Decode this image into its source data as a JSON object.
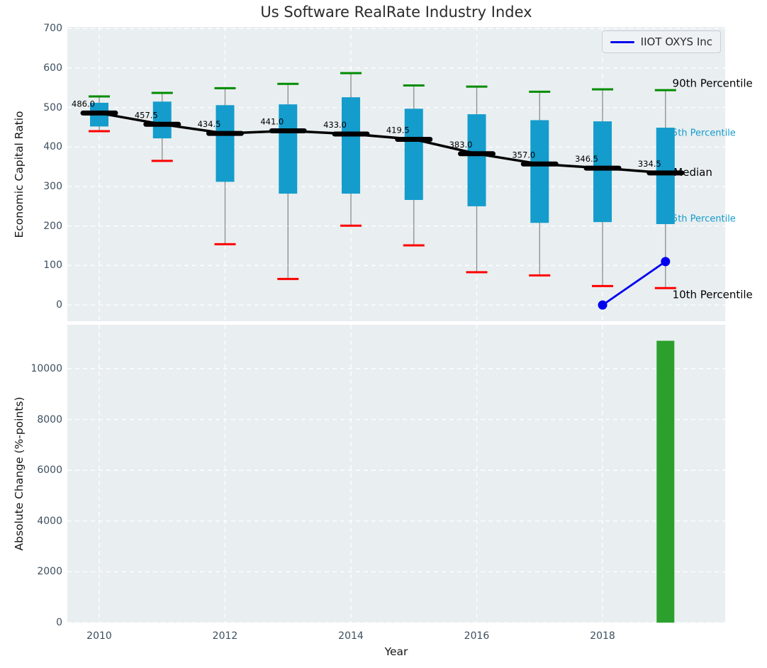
{
  "title": "Us Software RealRate Industry Index",
  "colors": {
    "box": "#149ccc",
    "whisker": "#8c8c8c",
    "cap_high": "#008c00",
    "cap_low": "#ff0000",
    "median": "#000000",
    "company_line": "#0000ee",
    "bar": "#2ca02c",
    "plot_background": "#e9eef0",
    "grid": "#ffffff",
    "tick_label": "#3d4f5f"
  },
  "chart_data": [
    {
      "type": "box",
      "ylabel": "Economic Capital Ratio",
      "ylim": [
        -41,
        704
      ],
      "yticks": [
        0,
        100,
        200,
        300,
        400,
        500,
        600,
        700
      ],
      "xlim": [
        2009.493,
        2019.949
      ],
      "xticks": [
        2010,
        2012,
        2014,
        2016,
        2018
      ],
      "grid": true,
      "years": [
        2010,
        2011,
        2012,
        2013,
        2014,
        2015,
        2016,
        2017,
        2018,
        2019
      ],
      "median": [
        486.0,
        457.5,
        434.5,
        441.0,
        433.0,
        419.5,
        383.0,
        357.0,
        346.5,
        334.5
      ],
      "median_labels": [
        "486.0",
        "457.5",
        "434.5",
        "441.0",
        "433.0",
        "419.5",
        "383.0",
        "357.0",
        "346.5",
        "334.5"
      ],
      "p75": [
        512,
        515,
        506,
        508,
        526,
        497,
        483,
        468,
        465,
        449
      ],
      "p25": [
        452,
        422,
        312,
        282,
        282,
        266,
        250,
        208,
        210,
        205
      ],
      "p90": [
        528,
        537,
        549,
        560,
        587,
        556,
        553,
        540,
        546,
        544
      ],
      "p10": [
        440,
        365,
        154,
        66,
        201,
        151,
        83,
        75,
        48,
        43
      ],
      "company_series": {
        "name": "IIOT OXYS Inc",
        "years": [
          2018,
          2019
        ],
        "values": [
          0,
          110
        ]
      },
      "legend": {
        "label": "IIOT OXYS Inc"
      },
      "annotations": [
        {
          "text": "90th Percentile",
          "value": 562,
          "year": 2019.11,
          "color": "#000000",
          "size": 15,
          "layer": "front"
        },
        {
          "text": "75th Percentile",
          "value": 437,
          "year": 2019.01,
          "color": "#149ccc",
          "size": 13,
          "layer": "behind"
        },
        {
          "text": "Median",
          "value": 336,
          "year": 2019.13,
          "color": "#000000",
          "size": 15,
          "layer": "front"
        },
        {
          "text": "25th Percentile",
          "value": 219,
          "year": 2019.01,
          "color": "#149ccc",
          "size": 13,
          "layer": "behind"
        },
        {
          "text": "10th Percentile",
          "value": 27,
          "year": 2019.11,
          "color": "#000000",
          "size": 15,
          "layer": "front"
        }
      ]
    },
    {
      "type": "bar",
      "ylabel": "Absolute Change (%-points)",
      "xlabel": "Year",
      "ylim": [
        0,
        11730
      ],
      "yticks": [
        0,
        2000,
        4000,
        6000,
        8000,
        10000
      ],
      "xlim": [
        2009.493,
        2019.949
      ],
      "xticks": [
        2010,
        2012,
        2014,
        2016,
        2018
      ],
      "grid": true,
      "bars": [
        {
          "year": 2019,
          "value": 11100
        }
      ]
    }
  ]
}
